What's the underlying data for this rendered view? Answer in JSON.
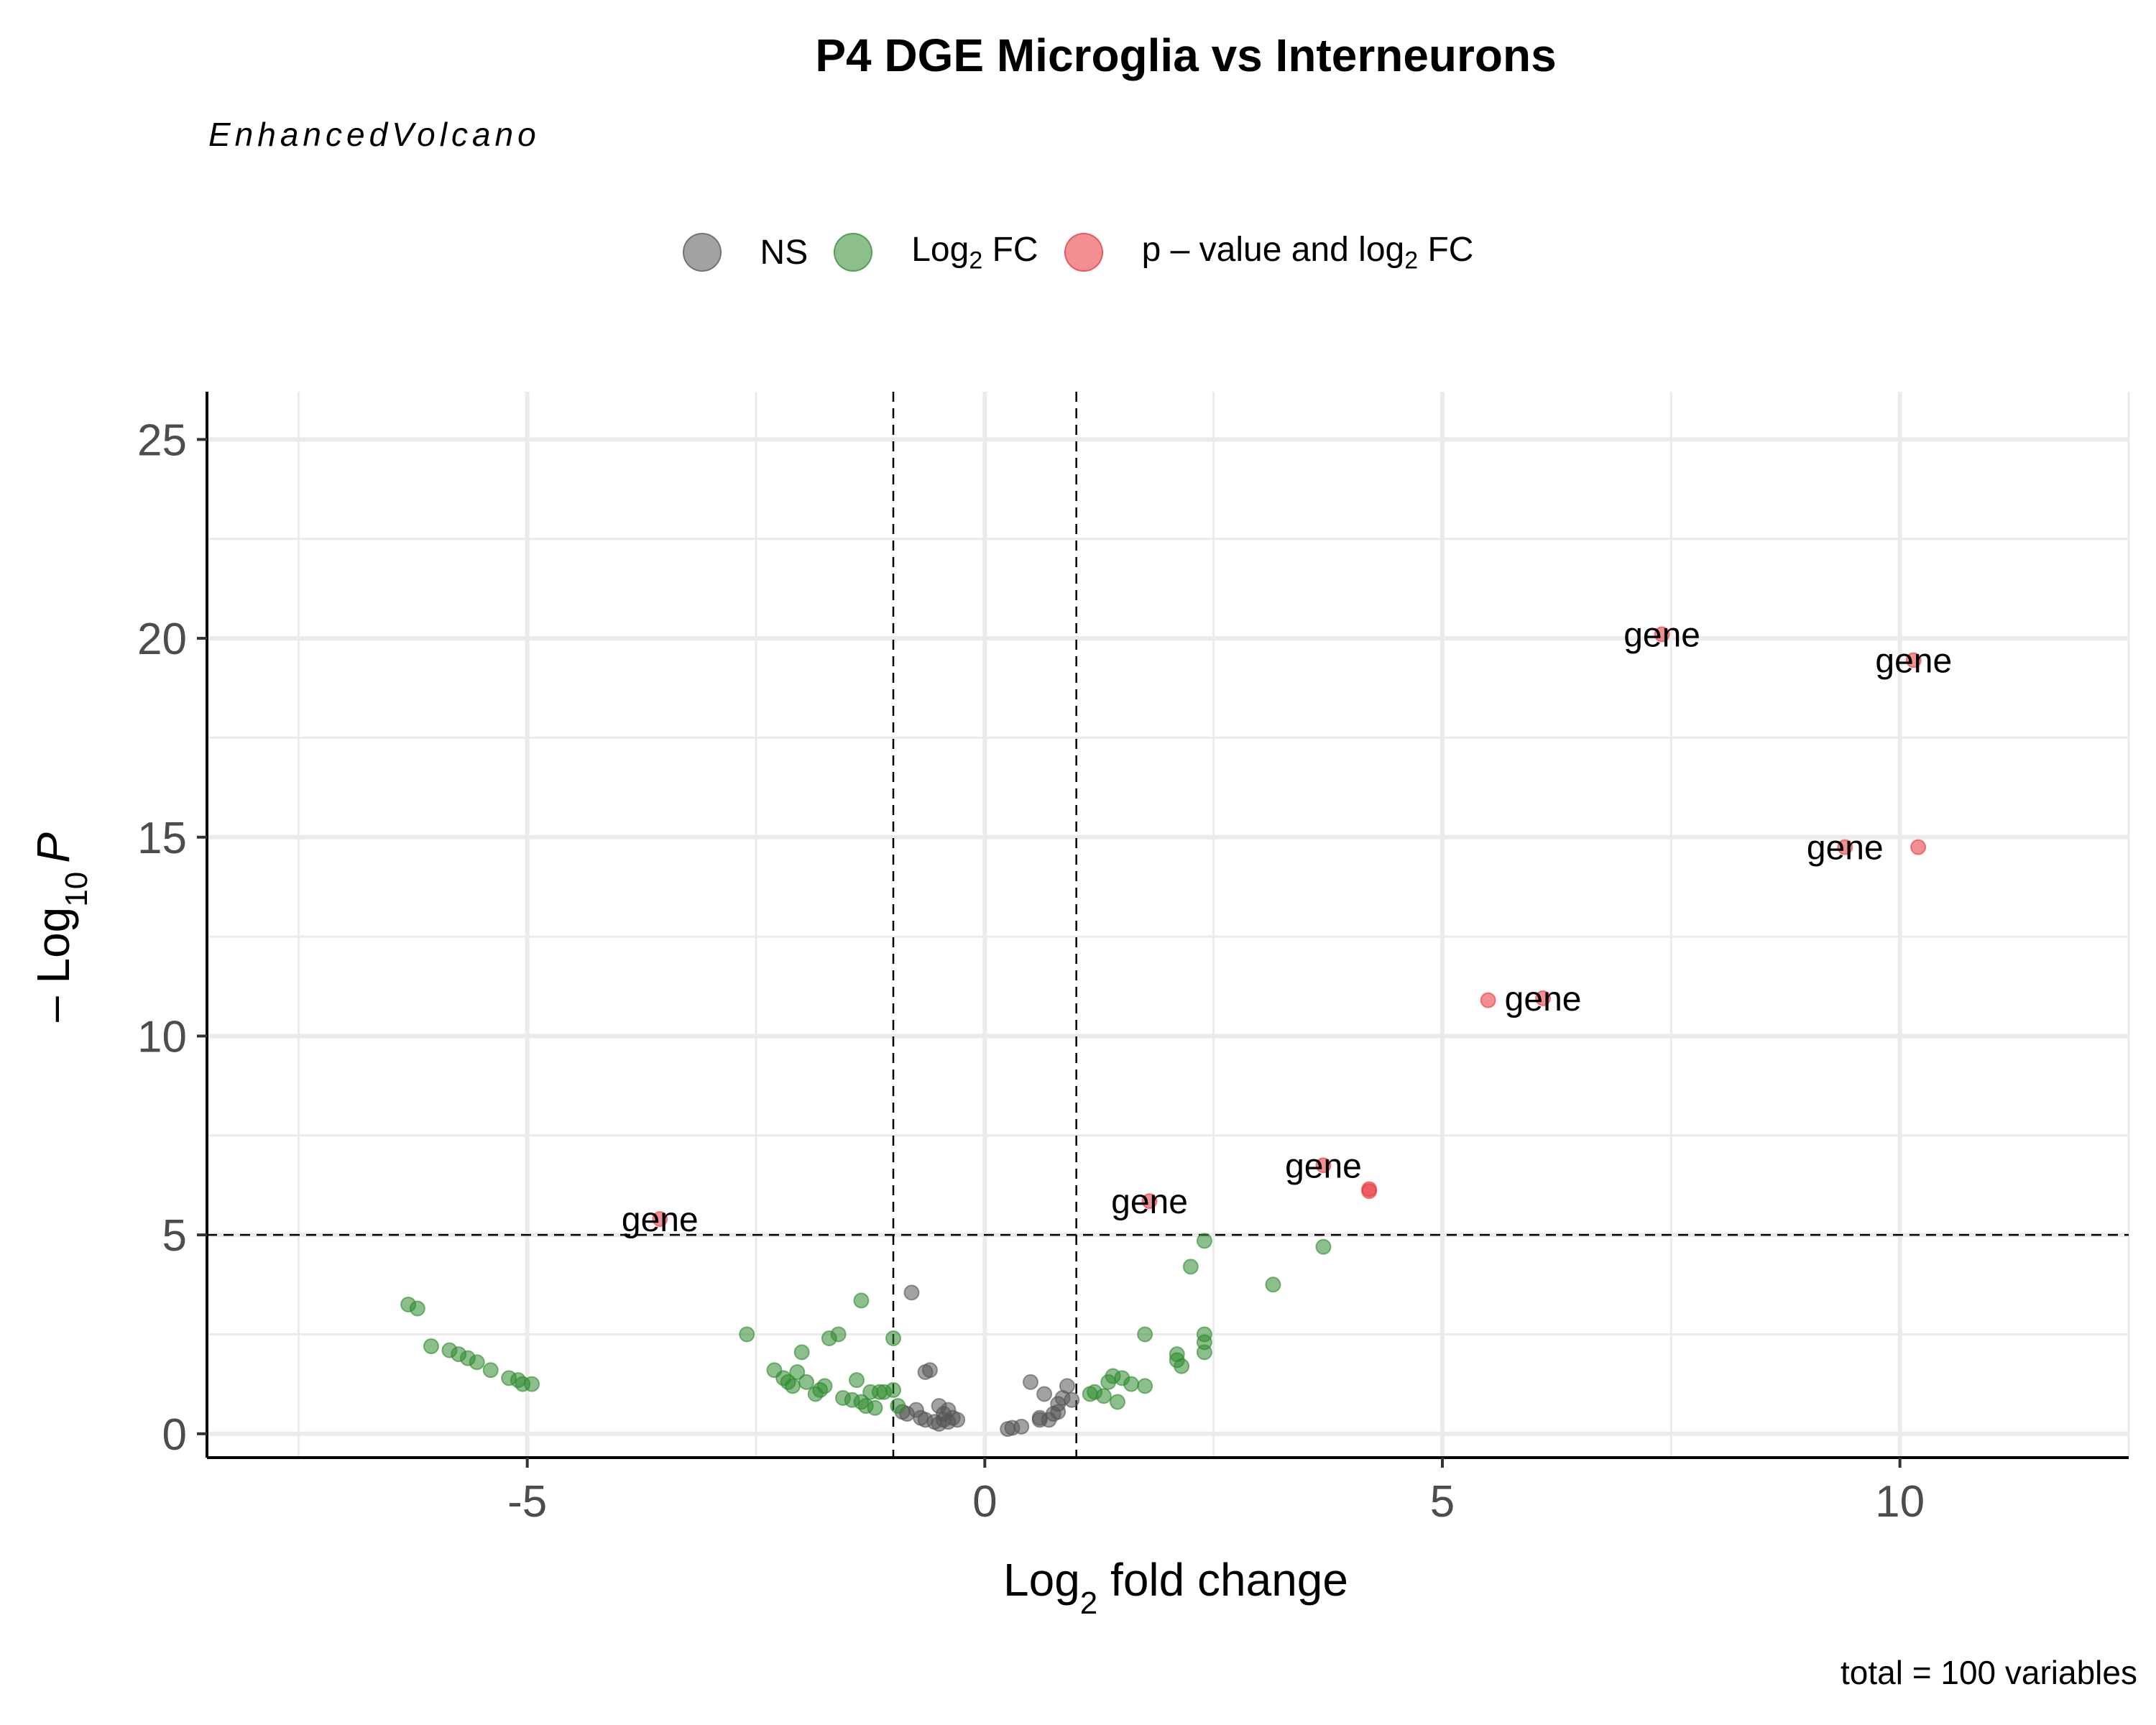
{
  "chart_data": {
    "type": "scatter",
    "title": "P4 DGE Microglia vs Interneurons",
    "subtitle": "EnhancedVolcano",
    "caption": "total = 100 variables",
    "xlabel": "Log2 fold change",
    "ylabel": "-Log10 P",
    "xlim": [
      -8.5,
      12.5
    ],
    "ylim": [
      -0.6,
      26.2
    ],
    "xticks": [
      -5,
      0,
      5,
      10
    ],
    "yticks": [
      0,
      5,
      10,
      15,
      20,
      25
    ],
    "grid": true,
    "legend_position": "top",
    "thresholds": {
      "log2fc": [
        -1,
        1
      ],
      "neglog10p": 5
    },
    "legend": [
      {
        "key": "NS",
        "color": "#555555"
      },
      {
        "key": "Log2 FC",
        "color": "#2e8b2e"
      },
      {
        "key": "p - value and log2 FC",
        "color": "#e8333a"
      }
    ],
    "series": [
      {
        "name": "NS",
        "color": "#555555",
        "points": [
          [
            -0.8,
            3.55
          ],
          [
            -0.6,
            1.6
          ],
          [
            -0.65,
            1.55
          ],
          [
            -0.9,
            0.55
          ],
          [
            -0.85,
            0.5
          ],
          [
            -0.75,
            0.6
          ],
          [
            -0.7,
            0.4
          ],
          [
            -0.65,
            0.35
          ],
          [
            -0.55,
            0.3
          ],
          [
            -0.5,
            0.25
          ],
          [
            -0.45,
            0.35
          ],
          [
            -0.4,
            0.3
          ],
          [
            -0.5,
            0.7
          ],
          [
            -0.4,
            0.6
          ],
          [
            -0.35,
            0.4
          ],
          [
            -0.3,
            0.35
          ],
          [
            -0.45,
            0.5
          ],
          [
            0.25,
            0.12
          ],
          [
            0.3,
            0.15
          ],
          [
            0.4,
            0.18
          ],
          [
            0.5,
            1.3
          ],
          [
            0.6,
            0.4
          ],
          [
            0.65,
            1.0
          ],
          [
            0.7,
            0.35
          ],
          [
            0.75,
            0.5
          ],
          [
            0.8,
            0.75
          ],
          [
            0.85,
            0.9
          ],
          [
            0.9,
            1.2
          ],
          [
            0.95,
            0.85
          ],
          [
            0.8,
            0.55
          ],
          [
            0.6,
            0.35
          ]
        ]
      },
      {
        "name": "Log2 FC",
        "color": "#2e8b2e",
        "points": [
          [
            -6.3,
            3.25
          ],
          [
            -6.2,
            3.15
          ],
          [
            -6.05,
            2.2
          ],
          [
            -5.85,
            2.1
          ],
          [
            -5.75,
            2.0
          ],
          [
            -5.65,
            1.9
          ],
          [
            -5.55,
            1.8
          ],
          [
            -5.4,
            1.6
          ],
          [
            -5.2,
            1.4
          ],
          [
            -5.1,
            1.35
          ],
          [
            -5.05,
            1.25
          ],
          [
            -4.95,
            1.25
          ],
          [
            -2.6,
            2.5
          ],
          [
            -2.3,
            1.6
          ],
          [
            -2.2,
            1.4
          ],
          [
            -2.15,
            1.3
          ],
          [
            -2.1,
            1.2
          ],
          [
            -2.05,
            1.55
          ],
          [
            -2.0,
            2.05
          ],
          [
            -1.95,
            1.3
          ],
          [
            -1.85,
            1.0
          ],
          [
            -1.8,
            1.1
          ],
          [
            -1.75,
            1.2
          ],
          [
            -1.7,
            2.4
          ],
          [
            -1.6,
            2.5
          ],
          [
            -1.55,
            0.9
          ],
          [
            -1.45,
            0.85
          ],
          [
            -1.4,
            1.35
          ],
          [
            -1.35,
            0.8
          ],
          [
            -1.3,
            0.7
          ],
          [
            -1.25,
            1.05
          ],
          [
            -1.2,
            0.65
          ],
          [
            -1.15,
            1.05
          ],
          [
            -1.1,
            1.05
          ],
          [
            -1.0,
            1.1
          ],
          [
            -1.35,
            3.35
          ],
          [
            -1.0,
            2.4
          ],
          [
            -0.95,
            0.7
          ],
          [
            1.15,
            1.0
          ],
          [
            1.2,
            1.05
          ],
          [
            1.3,
            0.95
          ],
          [
            1.35,
            1.3
          ],
          [
            1.4,
            1.45
          ],
          [
            1.45,
            0.8
          ],
          [
            1.5,
            1.4
          ],
          [
            1.6,
            1.25
          ],
          [
            1.75,
            1.2
          ],
          [
            1.75,
            2.5
          ],
          [
            2.1,
            2.0
          ],
          [
            2.1,
            1.85
          ],
          [
            2.15,
            1.7
          ],
          [
            2.25,
            4.2
          ],
          [
            2.4,
            4.85
          ],
          [
            2.4,
            2.5
          ],
          [
            2.4,
            2.3
          ],
          [
            2.4,
            2.05
          ],
          [
            3.15,
            3.75
          ],
          [
            3.7,
            4.7
          ]
        ]
      },
      {
        "name": "p - value and log2 FC",
        "color": "#e8333a",
        "points": [
          [
            -3.55,
            5.4
          ],
          [
            1.8,
            5.85
          ],
          [
            3.7,
            6.75
          ],
          [
            4.2,
            6.15
          ],
          [
            4.2,
            6.1
          ],
          [
            5.5,
            10.9
          ],
          [
            6.1,
            10.95
          ],
          [
            7.4,
            20.1
          ],
          [
            9.4,
            14.75
          ],
          [
            10.15,
            19.45
          ],
          [
            10.2,
            14.75
          ]
        ]
      }
    ],
    "labels": [
      {
        "text": "gene",
        "x": -3.55,
        "y": 5.4
      },
      {
        "text": "gene",
        "x": 1.8,
        "y": 5.85
      },
      {
        "text": "gene",
        "x": 3.7,
        "y": 6.75
      },
      {
        "text": "gene",
        "x": 6.1,
        "y": 10.95
      },
      {
        "text": "gene",
        "x": 9.4,
        "y": 14.75
      },
      {
        "text": "gene",
        "x": 7.4,
        "y": 20.1
      },
      {
        "text": "gene",
        "x": 10.15,
        "y": 19.45
      }
    ]
  },
  "legend_labels": {
    "ns": "NS",
    "fc_base": "Log",
    "fc_sub": "2",
    "fc_tail": " FC",
    "both_base": "p – value and log",
    "both_sub": "2",
    "both_tail": " FC"
  },
  "axis_titles": {
    "x_base": "Log",
    "x_sub": "2",
    "x_tail": " fold change",
    "y_base": "– Log",
    "y_sub": "10",
    "y_tail": "P"
  }
}
